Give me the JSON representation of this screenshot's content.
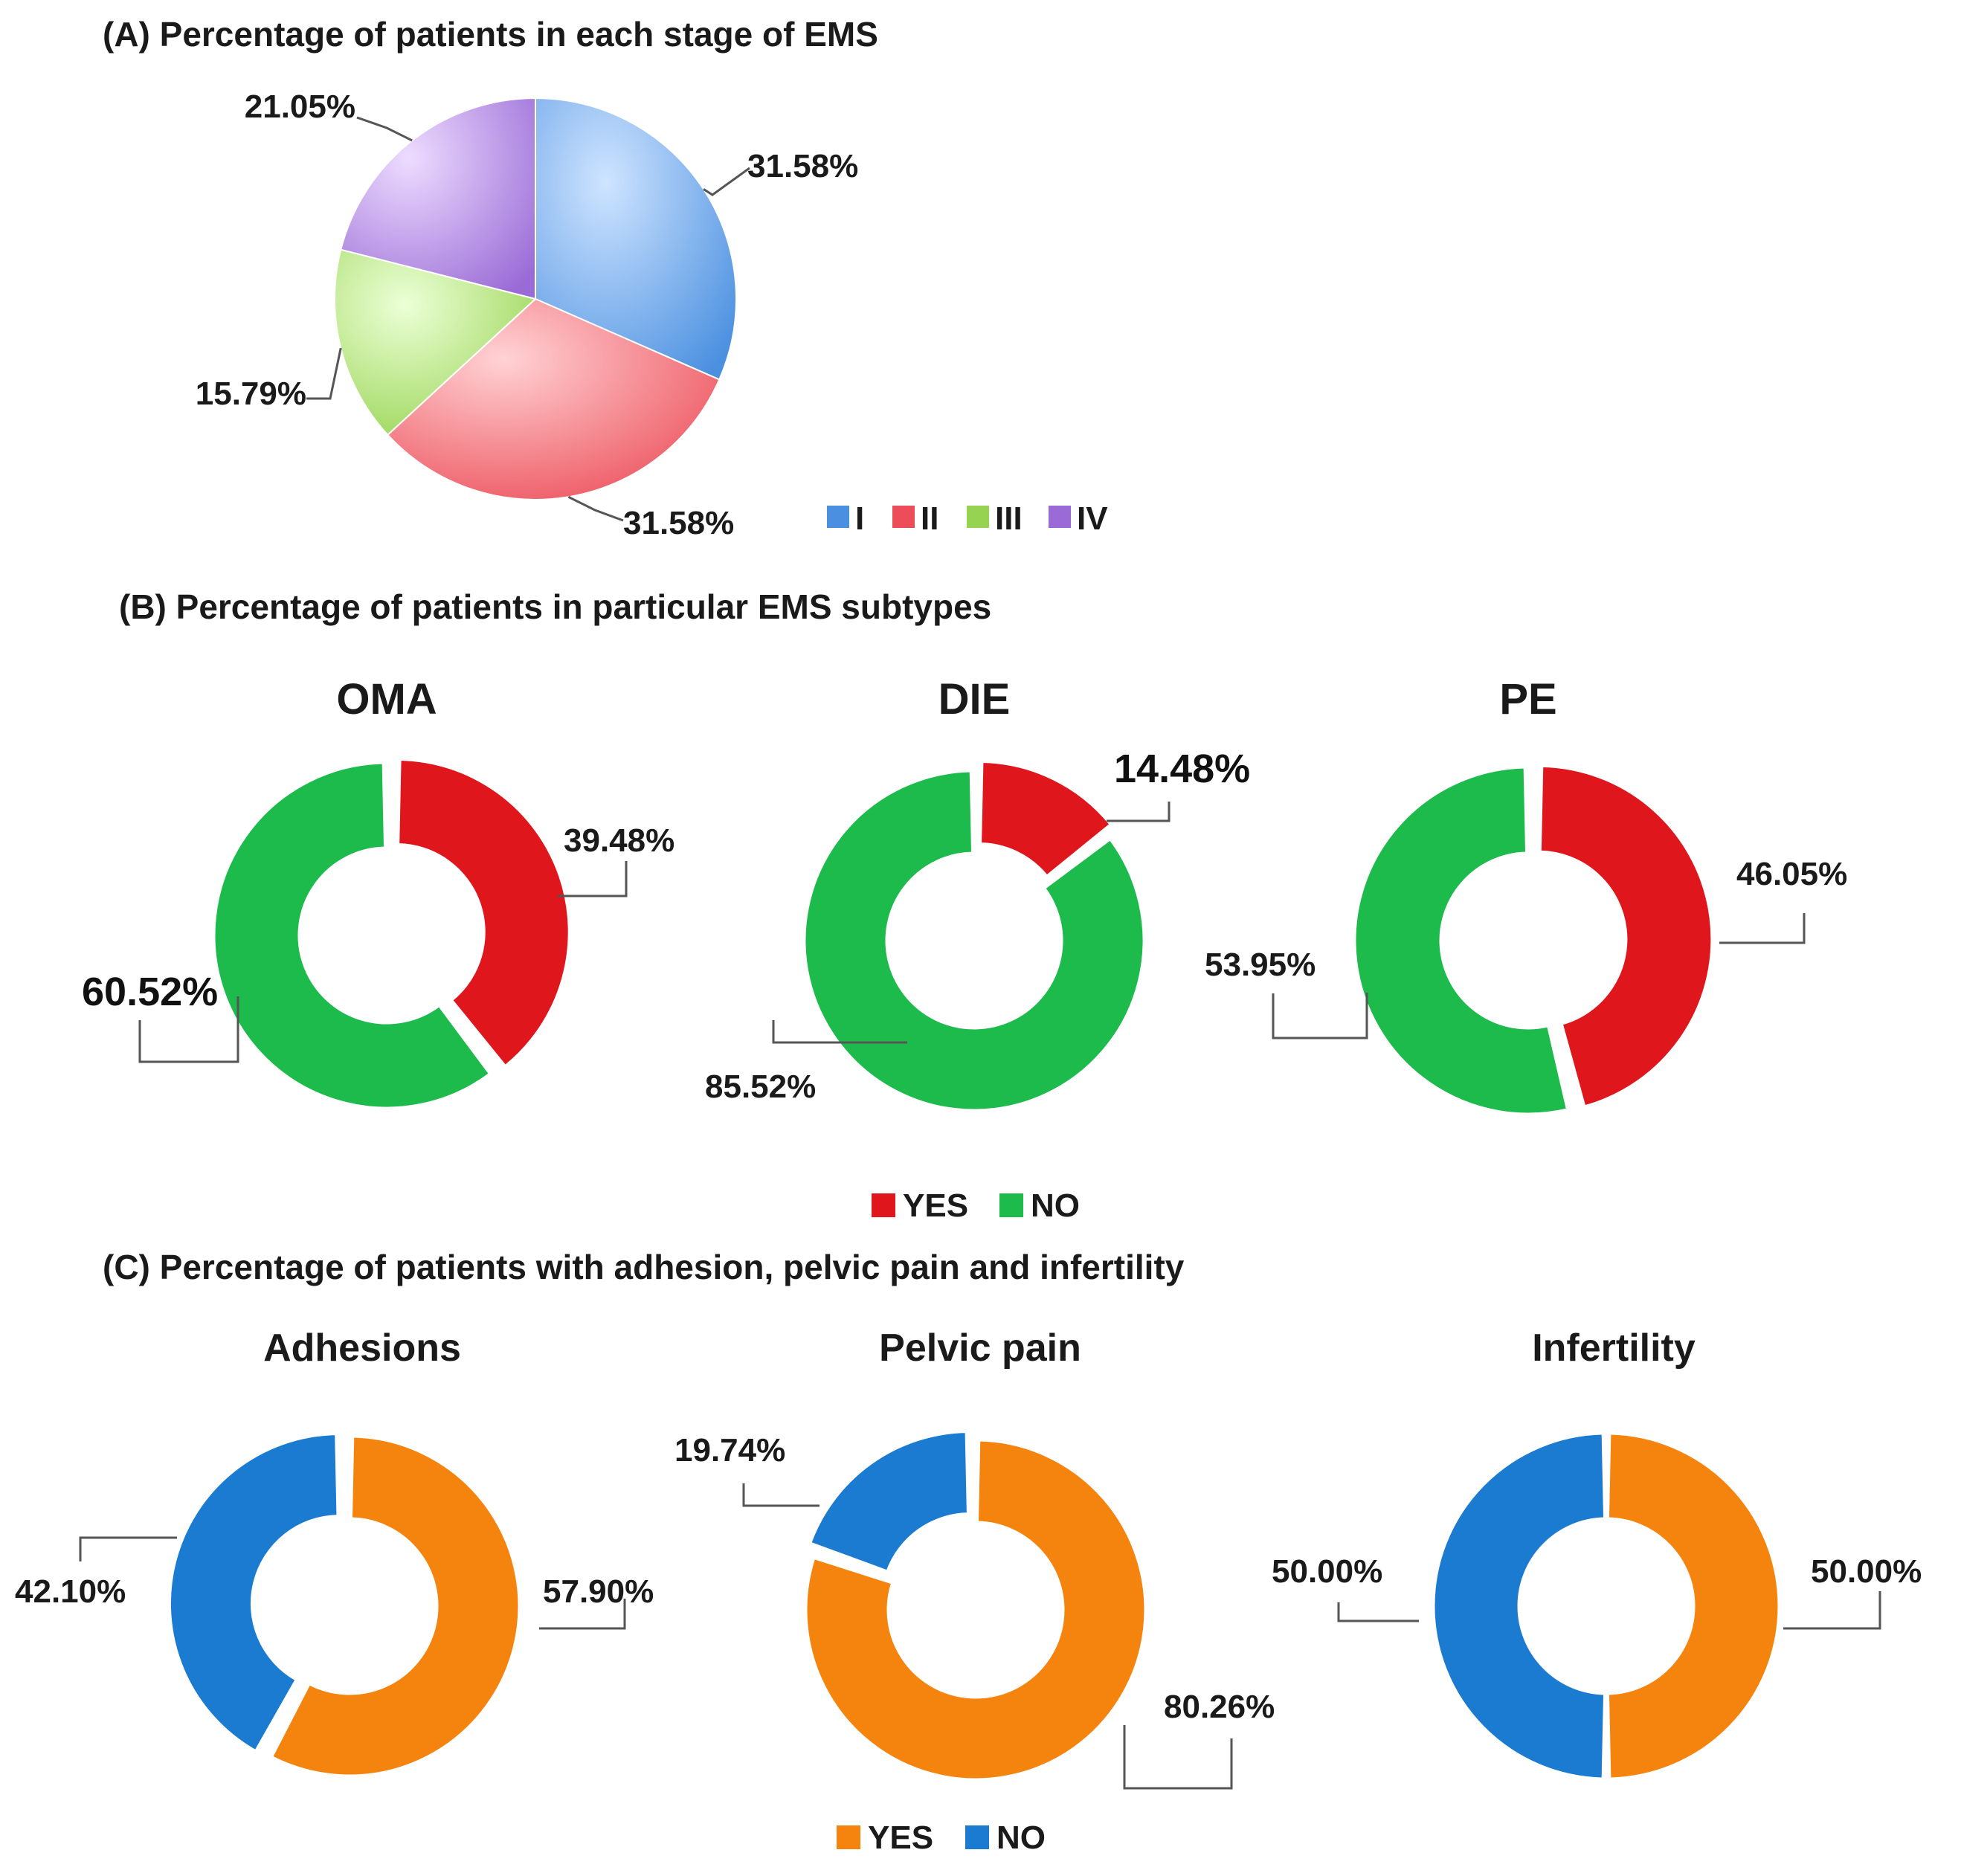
{
  "panels": {
    "a_title": "(A)  Percentage of patients in each stage of  EMS",
    "b_title": "(B)    Percentage of patients in particular EMS  subtypes",
    "c_title": "(C)  Percentage of patients with adhesion, pelvic pain and infertility"
  },
  "legend_b": {
    "yes": "YES",
    "no": "NO"
  },
  "legend_c": {
    "yes": "YES",
    "no": "NO"
  },
  "colors": {
    "stage_I": "#6aaaf0",
    "stage_II": "#f06a74",
    "stage_III": "#b5e57e",
    "stage_IV": "#b58be8",
    "b_yes": "#e0161d",
    "b_no": "#1dbb4b",
    "c_yes": "#f5840e",
    "c_no": "#1a7bd0"
  },
  "chart_data": [
    {
      "id": "A",
      "type": "pie",
      "title": "Percentage of patients in each stage of EMS",
      "categories": [
        "I",
        "II",
        "III",
        "IV"
      ],
      "values": [
        31.58,
        31.58,
        15.79,
        21.05
      ],
      "labels": [
        "31.58%",
        "31.58%",
        "15.79%",
        "21.05%"
      ],
      "legend": [
        "I",
        "II",
        "III",
        "IV"
      ],
      "legend_position": "bottom-right"
    },
    {
      "id": "OMA",
      "type": "pie",
      "subtype": "donut",
      "title": "OMA",
      "categories": [
        "YES",
        "NO"
      ],
      "values": [
        39.48,
        60.52
      ],
      "labels": [
        "39.48%",
        "60.52%"
      ]
    },
    {
      "id": "DIE",
      "type": "pie",
      "subtype": "donut",
      "title": "DIE",
      "categories": [
        "YES",
        "NO"
      ],
      "values": [
        14.48,
        85.52
      ],
      "labels": [
        "14.48%",
        "85.52%"
      ]
    },
    {
      "id": "PE",
      "type": "pie",
      "subtype": "donut",
      "title": "PE",
      "categories": [
        "YES",
        "NO"
      ],
      "values": [
        46.05,
        53.95
      ],
      "labels": [
        "46.05%",
        "53.95%"
      ]
    },
    {
      "id": "Adhesions",
      "type": "pie",
      "subtype": "donut",
      "title": "Adhesions",
      "categories": [
        "YES",
        "NO"
      ],
      "values": [
        57.9,
        42.1
      ],
      "labels": [
        "57.90%",
        "42.10%"
      ]
    },
    {
      "id": "PelvicPain",
      "type": "pie",
      "subtype": "donut",
      "title": "Pelvic pain",
      "categories": [
        "YES",
        "NO"
      ],
      "values": [
        80.26,
        19.74
      ],
      "labels": [
        "80.26%",
        "19.74%"
      ]
    },
    {
      "id": "Infertility",
      "type": "pie",
      "subtype": "donut",
      "title": "Infertility",
      "categories": [
        "YES",
        "NO"
      ],
      "values": [
        50.0,
        50.0
      ],
      "labels": [
        "50.00%",
        "50.00%"
      ]
    }
  ]
}
